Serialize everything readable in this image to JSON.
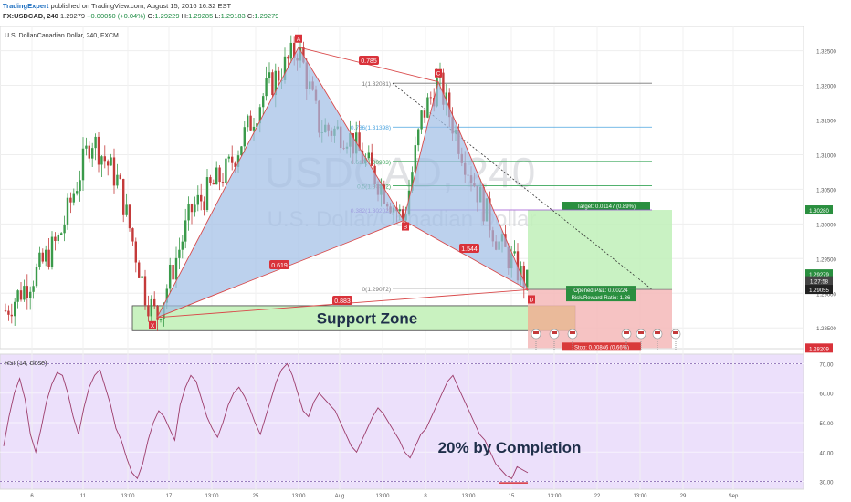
{
  "header": {
    "publisher": "TradingExpert",
    "published_text": "published on TradingView.com, August 15, 2016 16:32 EST",
    "symbol": "FX:USDCAD, 240",
    "last_price": "1.29279",
    "change": "+0.00050 (+0.04%)",
    "ohlc": {
      "o_label": "O:",
      "o": "1.29229",
      "h_label": "H:",
      "h": "1.29285",
      "l_label": "L:",
      "l": "1.29183",
      "c_label": "C:",
      "c": "1.29279"
    },
    "instrument_title": "U.S. Dollar/Canadian Dollar, 240, FXCM"
  },
  "watermark": {
    "symbol": "USDCAD, 240",
    "name": "U.S. Dollar/Canadian Dollar"
  },
  "colors": {
    "up": "#3a9a4a",
    "down": "#c43a3a",
    "harmonic_fill": "#9fbde6",
    "harmonic_line": "#d9494a",
    "support_fill": "#c9f2c0",
    "target_fill": "#bff0b8",
    "stop_fill": "#f5b8b8",
    "rsi_bg": "#ece0fb",
    "rsi_line": "#9c3b6a",
    "accent": "#2a8f3f"
  },
  "chart_data": [
    {
      "type": "candlestick",
      "title": "U.S. Dollar/Canadian Dollar, 240, FXCM",
      "x_ticks": [
        "6",
        "11",
        "13:00",
        "17",
        "13:00",
        "25",
        "13:00",
        "Aug",
        "13:00",
        "8",
        "13:00",
        "15",
        "13:00",
        "22",
        "13:00",
        "29",
        "Sep"
      ],
      "y_ticks": [
        1.285,
        1.29,
        1.295,
        1.3,
        1.305,
        1.31,
        1.315,
        1.32,
        1.325
      ],
      "ylim": [
        1.282,
        1.3285
      ],
      "last_price_labels": [
        "1.29279",
        "1.27:58",
        "1.29055",
        "1.30280",
        "1.28209"
      ],
      "swing_points": [
        {
          "label": "X",
          "y": 1.2865
        },
        {
          "label": "A",
          "y": 1.3255
        },
        {
          "label": "B",
          "y": 1.3005
        },
        {
          "label": "C",
          "y": 1.3205
        },
        {
          "label": "D",
          "y": 1.2905
        }
      ],
      "ratios": [
        "0.785",
        "0.619",
        "1.544",
        "0.883"
      ],
      "fib_levels": [
        {
          "label": "1(1.32031)",
          "y": 1.32031
        },
        {
          "label": "0.786(1.31398)",
          "y": 1.31398
        },
        {
          "label": "0.618(1.30903)",
          "y": 1.30903
        },
        {
          "label": "0.5(1.30552)",
          "y": 1.30552
        },
        {
          "label": "0.382(1.30202)",
          "y": 1.30202
        },
        {
          "label": "0(1.29072)",
          "y": 1.29072
        }
      ],
      "support_zone": {
        "label": "Support Zone",
        "y_top": 1.2882,
        "y_bottom": 1.2846
      },
      "position": {
        "entry": 1.29055,
        "target": 1.30202,
        "stop": 1.28209,
        "target_label": "Target: 0.01147 (0.89%)",
        "open_pl_label": "Opened P&L: 0.00224",
        "rr_label": "Risk/Reward Ratio: 1.36",
        "stop_label": "Stop: 0.00846 (0.66%)"
      }
    },
    {
      "type": "line",
      "title": "RSI (14, close)",
      "y_ticks": [
        30,
        40,
        50,
        60,
        70
      ],
      "ylim": [
        28,
        72
      ],
      "series": [
        {
          "name": "RSI (14, close)",
          "values": [
            42,
            52,
            60,
            65,
            58,
            46,
            40,
            48,
            57,
            63,
            67,
            66,
            60,
            52,
            46,
            55,
            62,
            66,
            68,
            62,
            56,
            48,
            44,
            38,
            33,
            31,
            36,
            44,
            50,
            54,
            52,
            48,
            44,
            56,
            62,
            66,
            64,
            58,
            52,
            48,
            45,
            50,
            56,
            60,
            62,
            59,
            55,
            50,
            46,
            52,
            58,
            64,
            68,
            70,
            66,
            60,
            54,
            52,
            57,
            60,
            58,
            56,
            54,
            50,
            46,
            42,
            40,
            44,
            48,
            52,
            55,
            53,
            50,
            47,
            44,
            40,
            38,
            42,
            46,
            48,
            52,
            56,
            60,
            64,
            66,
            62,
            58,
            54,
            50,
            46,
            44,
            40,
            36,
            34,
            32,
            31,
            35,
            34,
            33
          ]
        }
      ],
      "annotation": "20% by Completion"
    }
  ]
}
